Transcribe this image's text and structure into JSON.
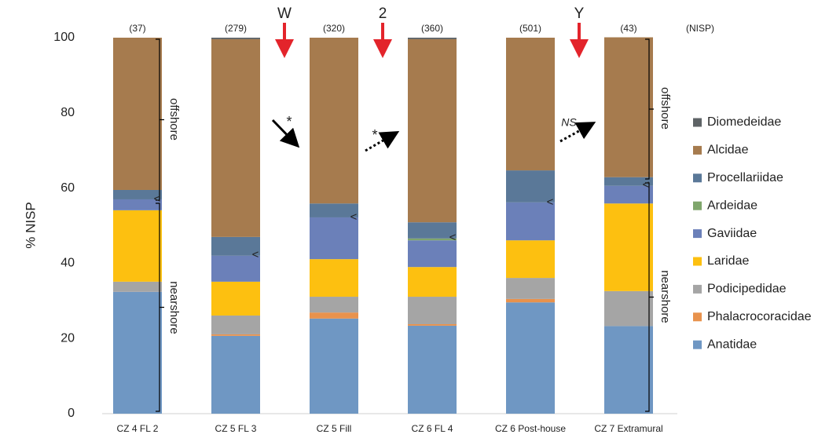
{
  "chart_data": {
    "type": "stacked_bar",
    "ylabel": "% NISP",
    "categories": [
      "CZ 4 FL 2",
      "CZ 5 FL 3",
      "CZ 5 Fill",
      "CZ 6 FL 4",
      "CZ 6 Post-house",
      "CZ 7 Extramural"
    ],
    "series": [
      {
        "name": "Anatidae",
        "color": "#6f97c3",
        "values": [
          32.4,
          20.7,
          25.3,
          23.4,
          29.6,
          23.3
        ]
      },
      {
        "name": "Phalacrocoracidae",
        "color": "#e8924d",
        "values": [
          0,
          0.4,
          1.6,
          0.4,
          0.9,
          0
        ]
      },
      {
        "name": "Podicipedidae",
        "color": "#a5a5a5",
        "values": [
          2.7,
          5.0,
          4.2,
          7.3,
          5.6,
          9.3
        ]
      },
      {
        "name": "Laridae",
        "color": "#fdc010",
        "values": [
          19.0,
          9.0,
          10.0,
          7.9,
          10.0,
          23.3
        ]
      },
      {
        "name": "Gaviidae",
        "color": "#6b80b9",
        "values": [
          2.9,
          6.9,
          11.1,
          7.1,
          10.1,
          4.7
        ]
      },
      {
        "name": "Ardeidae",
        "color": "#7fa66c",
        "values": [
          0,
          0,
          0,
          0.5,
          0,
          0
        ]
      },
      {
        "name": "Procellariidae",
        "color": "#5a7898",
        "values": [
          2.5,
          5.0,
          3.7,
          4.3,
          8.5,
          2.3
        ]
      },
      {
        "name": "Alcidae",
        "color": "#a67b4e",
        "values": [
          40.5,
          52.6,
          44.1,
          48.7,
          35.3,
          37.2
        ]
      },
      {
        "name": "Diomedeidae",
        "color": "#5e6366",
        "values": [
          0,
          0.4,
          0,
          0.4,
          0,
          0
        ]
      }
    ],
    "ylim": [
      0,
      100
    ],
    "yticks": [
      0,
      20,
      40,
      60,
      80,
      100
    ],
    "bar_counts": [
      "(37)",
      "(279)",
      "(320)",
      "(360)",
      "(501)",
      "(43)"
    ],
    "count_header": "(NISP)",
    "transition_labels": [
      "W",
      "2",
      "Y"
    ],
    "trend_labels": [
      "*",
      "*",
      "NS"
    ],
    "zone_labels": [
      "offshore",
      "nearshore",
      "offshore",
      "nearshore"
    ],
    "boundary_marks": [
      "<",
      "<",
      "<",
      "<",
      "<",
      "<"
    ]
  }
}
